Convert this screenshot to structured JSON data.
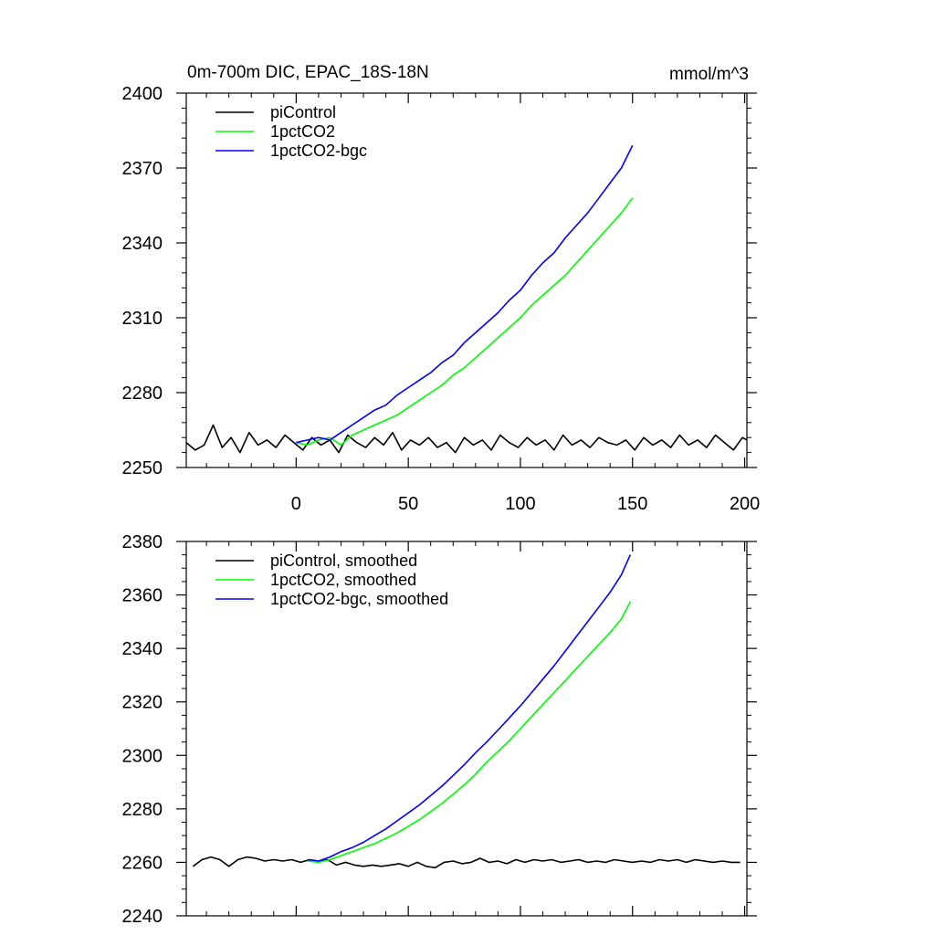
{
  "chart_data": [
    {
      "type": "line",
      "title": "0m-700m DIC, EPAC_18S-18N",
      "units_label": "mmol/m^3",
      "xlim": [
        -49,
        201
      ],
      "ylim": [
        2250,
        2400
      ],
      "x_ticks": [
        0,
        50,
        100,
        150,
        200
      ],
      "x_tick_labels": [
        "0",
        "50",
        "100",
        "150",
        "200"
      ],
      "y_ticks": [
        2250,
        2280,
        2310,
        2340,
        2370,
        2400
      ],
      "y_tick_labels": [
        "2250",
        "2280",
        "2310",
        "2340",
        "2370",
        "2400"
      ],
      "legend": [
        "piControl",
        "1pctCO2",
        "1pctCO2-bgc"
      ],
      "series": [
        {
          "name": "piControl",
          "color": "#000000",
          "x": [
            -49,
            -45,
            -41,
            -37,
            -33,
            -29,
            -25,
            -21,
            -17,
            -13,
            -9,
            -5,
            -1,
            3,
            7,
            11,
            15,
            19,
            23,
            27,
            31,
            35,
            39,
            43,
            47,
            51,
            55,
            59,
            63,
            67,
            71,
            75,
            79,
            83,
            87,
            91,
            95,
            99,
            103,
            107,
            111,
            115,
            119,
            123,
            127,
            131,
            135,
            139,
            143,
            147,
            151,
            155,
            159,
            163,
            167,
            171,
            175,
            179,
            183,
            187,
            191,
            195,
            199,
            201
          ],
          "values": [
            2260,
            2257,
            2259,
            2267,
            2258,
            2262,
            2256,
            2264,
            2259,
            2261,
            2258,
            2263,
            2260,
            2257,
            2262,
            2259,
            2261,
            2256,
            2263,
            2260,
            2258,
            2262,
            2259,
            2264,
            2257,
            2261,
            2259,
            2262,
            2258,
            2260,
            2256,
            2262,
            2259,
            2261,
            2257,
            2263,
            2260,
            2258,
            2262,
            2259,
            2261,
            2257,
            2263,
            2259,
            2261,
            2258,
            2262,
            2260,
            2259,
            2261,
            2257,
            2262,
            2259,
            2261,
            2258,
            2263,
            2259,
            2261,
            2258,
            2263,
            2260,
            2257,
            2262,
            2261
          ]
        },
        {
          "name": "1pctCO2",
          "color": "#00ff00",
          "x": [
            0,
            5,
            10,
            15,
            20,
            25,
            30,
            35,
            40,
            45,
            50,
            55,
            60,
            65,
            70,
            75,
            80,
            85,
            90,
            95,
            100,
            105,
            110,
            115,
            120,
            125,
            130,
            135,
            140,
            145,
            150
          ],
          "values": [
            2260,
            2259,
            2261,
            2262,
            2259,
            2263,
            2265,
            2267,
            2269,
            2271,
            2274,
            2277,
            2280,
            2283,
            2287,
            2290,
            2294,
            2298,
            2302,
            2306,
            2310,
            2315,
            2319,
            2323,
            2327,
            2332,
            2337,
            2342,
            2347,
            2352,
            2358
          ]
        },
        {
          "name": "1pctCO2-bgc",
          "color": "#0000ff",
          "x": [
            0,
            5,
            10,
            15,
            20,
            25,
            30,
            35,
            40,
            45,
            50,
            55,
            60,
            65,
            70,
            75,
            80,
            85,
            90,
            95,
            100,
            105,
            110,
            115,
            120,
            125,
            130,
            135,
            140,
            145,
            150
          ],
          "values": [
            2260,
            2261,
            2262,
            2261,
            2264,
            2267,
            2270,
            2273,
            2275,
            2279,
            2282,
            2285,
            2288,
            2292,
            2295,
            2300,
            2304,
            2308,
            2312,
            2317,
            2321,
            2327,
            2332,
            2336,
            2342,
            2347,
            2352,
            2358,
            2364,
            2370,
            2379
          ]
        }
      ]
    },
    {
      "type": "line",
      "xlim": [
        -49,
        201
      ],
      "ylim": [
        2240,
        2380
      ],
      "x_ticks": [
        0,
        50,
        100,
        150,
        200
      ],
      "y_ticks": [
        2240,
        2260,
        2280,
        2300,
        2320,
        2340,
        2360,
        2380
      ],
      "y_tick_labels": [
        "2240",
        "2260",
        "2280",
        "2300",
        "2320",
        "2340",
        "2360",
        "2380"
      ],
      "legend": [
        "piControl, smoothed",
        "1pctCO2, smoothed",
        "1pctCO2-bgc, smoothed"
      ],
      "series": [
        {
          "name": "piControl, smoothed",
          "color": "#000000",
          "x": [
            -46,
            -42,
            -38,
            -34,
            -30,
            -26,
            -22,
            -18,
            -14,
            -10,
            -6,
            -2,
            2,
            6,
            10,
            14,
            18,
            22,
            26,
            30,
            34,
            38,
            42,
            46,
            50,
            54,
            58,
            62,
            66,
            70,
            74,
            78,
            82,
            86,
            90,
            94,
            98,
            102,
            106,
            110,
            114,
            118,
            122,
            126,
            130,
            134,
            138,
            142,
            146,
            150,
            154,
            158,
            162,
            166,
            170,
            174,
            178,
            182,
            186,
            190,
            194,
            198
          ],
          "values": [
            2258.5,
            2261,
            2262,
            2261,
            2258.5,
            2261,
            2262,
            2261.5,
            2260.5,
            2261,
            2260.5,
            2261,
            2260,
            2261,
            2260.5,
            2261,
            2259,
            2260,
            2259,
            2258.5,
            2259,
            2258.5,
            2259,
            2259.5,
            2258.5,
            2260,
            2258.5,
            2258,
            2260,
            2260.5,
            2259.5,
            2260,
            2261.5,
            2260,
            2260.5,
            2259.5,
            2261,
            2260,
            2261,
            2260.5,
            2261,
            2260,
            2260.5,
            2261,
            2260,
            2260.5,
            2260,
            2261,
            2260.5,
            2260,
            2260.5,
            2260,
            2261,
            2260.5,
            2261,
            2260,
            2261,
            2260.5,
            2260,
            2260.5,
            2260,
            2260
          ]
        },
        {
          "name": "1pctCO2, smoothed",
          "color": "#00ff00",
          "x": [
            5,
            10,
            15,
            20,
            25,
            30,
            35,
            40,
            45,
            50,
            55,
            60,
            65,
            70,
            75,
            80,
            85,
            90,
            95,
            100,
            105,
            110,
            115,
            120,
            125,
            130,
            135,
            140,
            145,
            149
          ],
          "values": [
            2260.5,
            2260,
            2261,
            2262.5,
            2264,
            2265.5,
            2267,
            2269,
            2271,
            2273.5,
            2276,
            2279,
            2282,
            2285.5,
            2289,
            2293,
            2297.5,
            2301.5,
            2305.5,
            2310,
            2314.5,
            2319,
            2323.5,
            2328,
            2332.5,
            2337,
            2341.5,
            2346,
            2351,
            2357.5
          ]
        },
        {
          "name": "1pctCO2-bgc, smoothed",
          "color": "#0000ff",
          "x": [
            5,
            10,
            15,
            20,
            25,
            30,
            35,
            40,
            45,
            50,
            55,
            60,
            65,
            70,
            75,
            80,
            85,
            90,
            95,
            100,
            105,
            110,
            115,
            120,
            125,
            130,
            135,
            140,
            145,
            149
          ],
          "values": [
            2261,
            2260.5,
            2262,
            2264,
            2265.5,
            2267.5,
            2270,
            2272.5,
            2275.5,
            2278.5,
            2281.5,
            2285,
            2288.5,
            2292.5,
            2296.5,
            2301,
            2305,
            2309.5,
            2314,
            2318.5,
            2323.5,
            2328.5,
            2333.5,
            2339,
            2344.5,
            2350,
            2355.5,
            2361,
            2367.5,
            2375
          ]
        }
      ]
    }
  ]
}
